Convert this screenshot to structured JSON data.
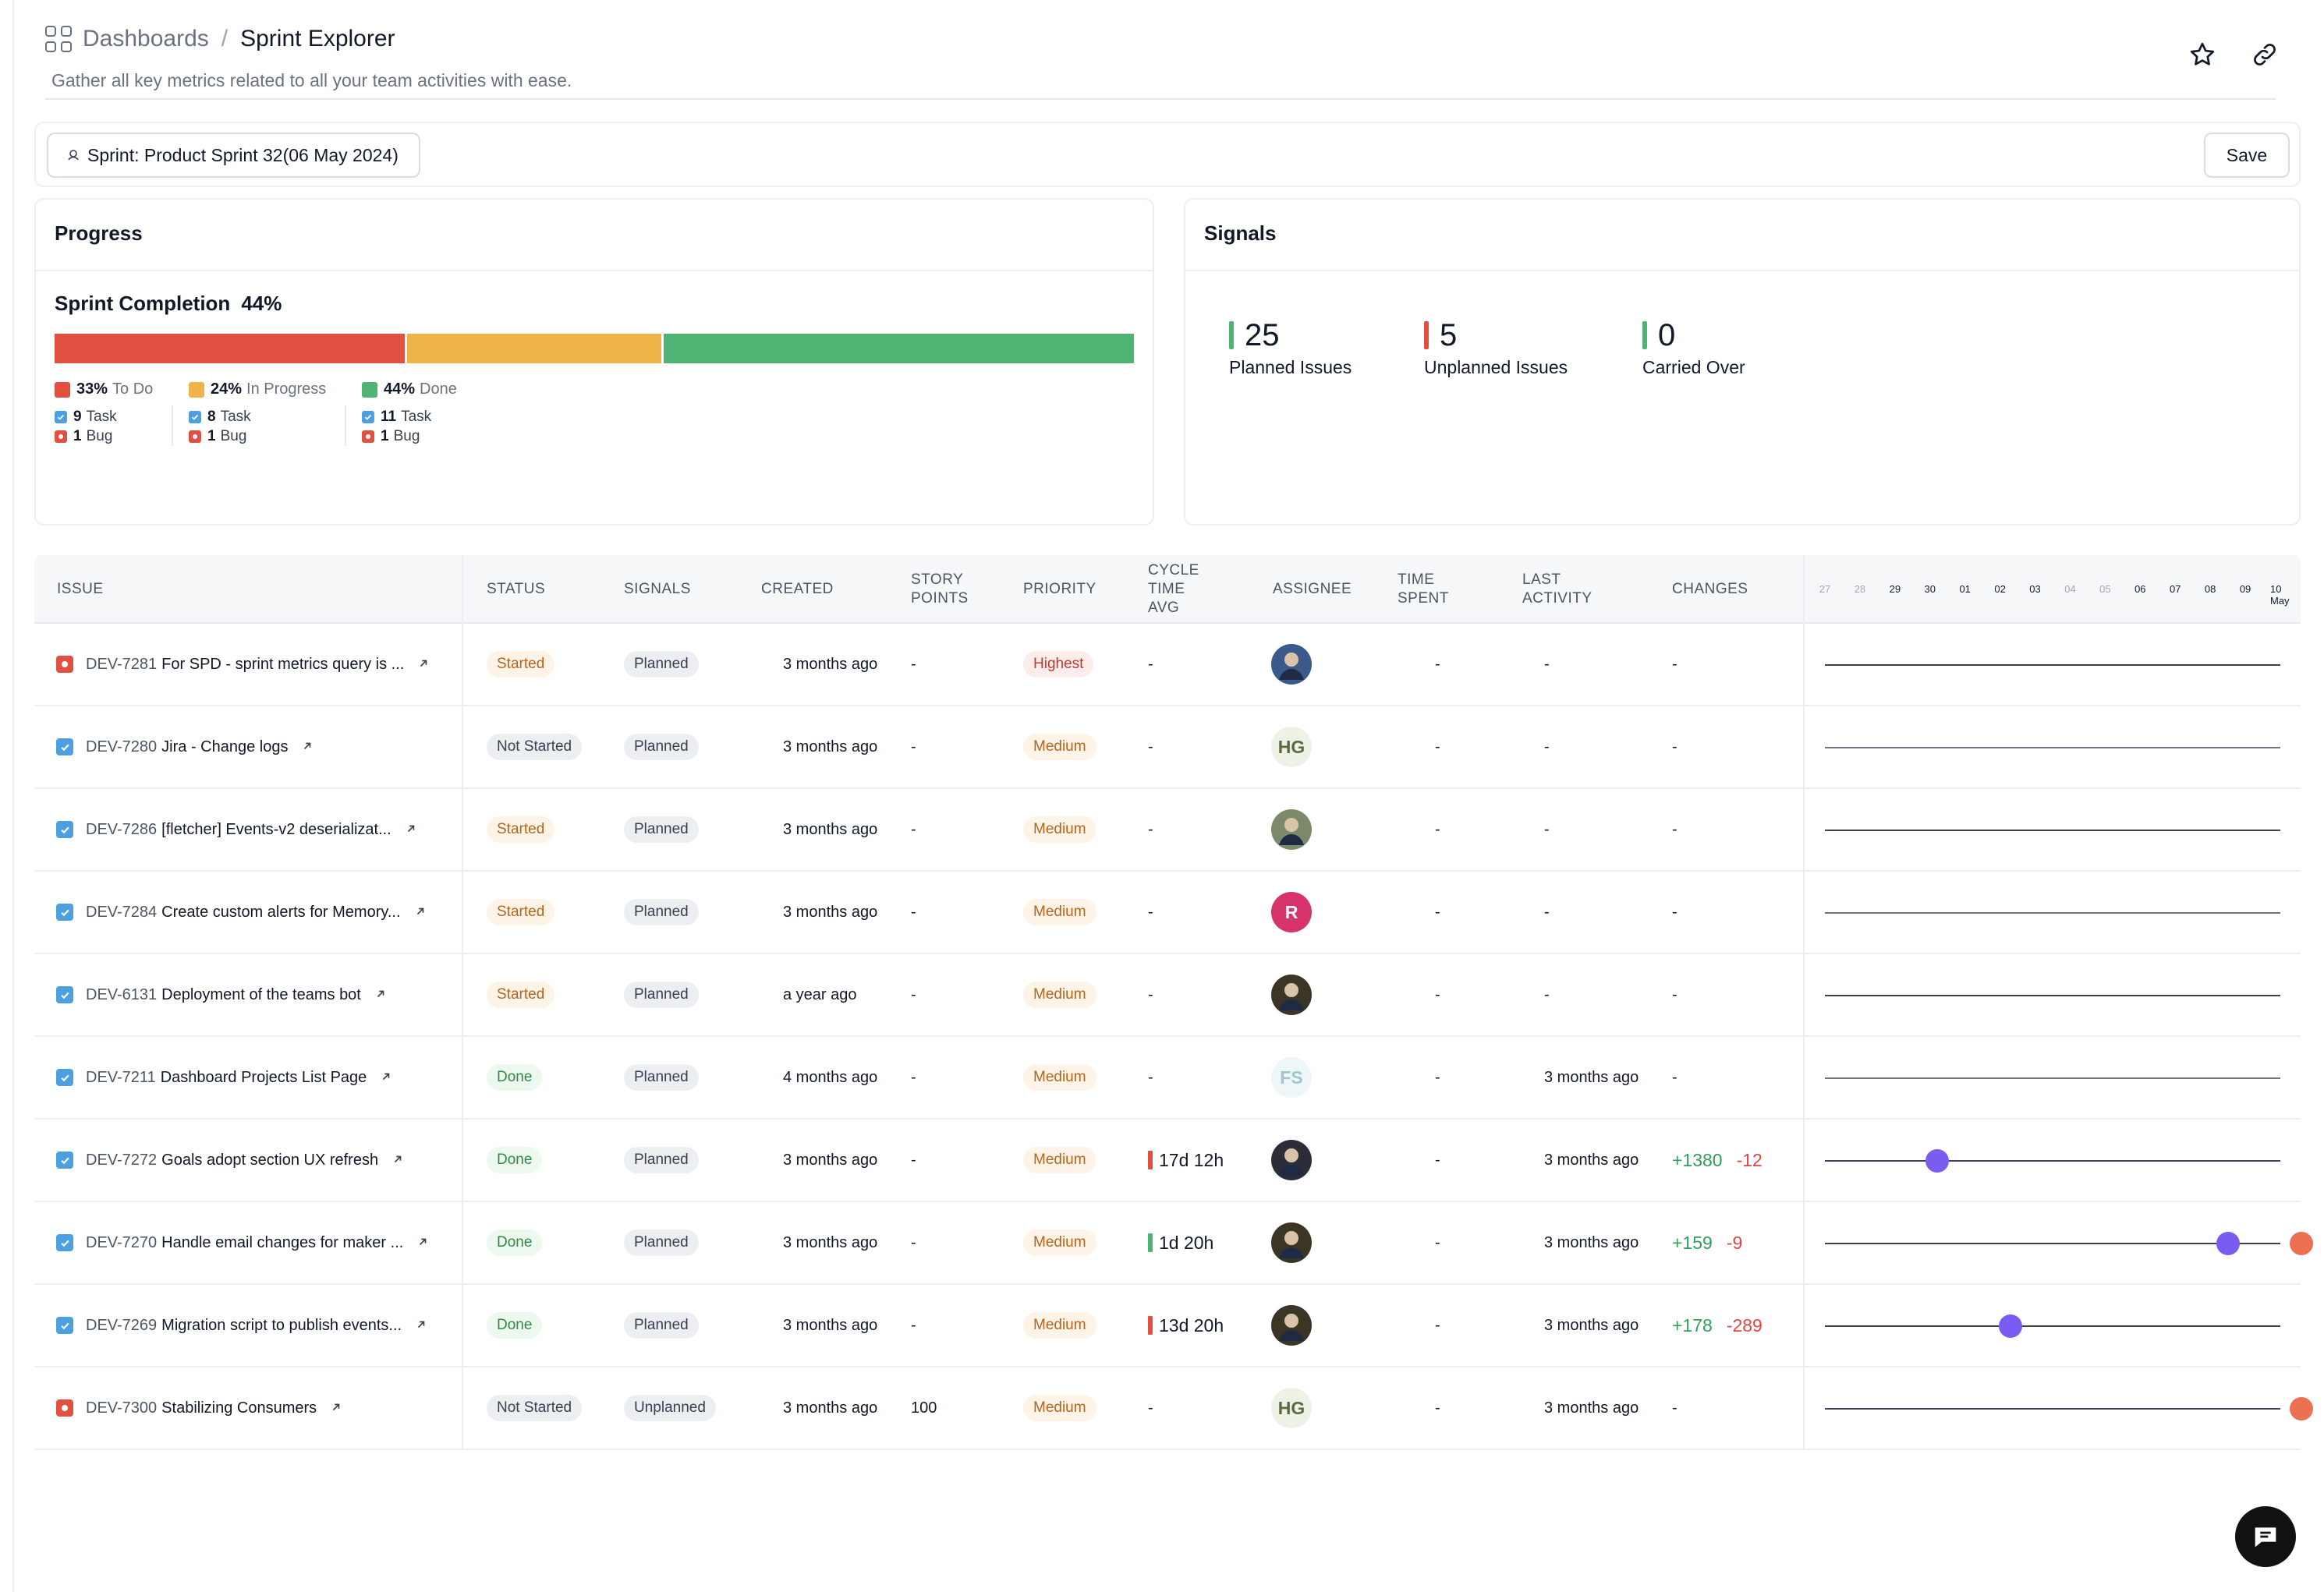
{
  "breadcrumb": {
    "root": "Dashboards",
    "separator": "/",
    "current": "Sprint Explorer"
  },
  "subtitle": "Gather all key metrics related to all your team activities with ease.",
  "filter": {
    "label": "Sprint: Product Sprint 32(06 May 2024)"
  },
  "save_label": "Save",
  "progress": {
    "title": "Progress",
    "completion_label": "Sprint Completion",
    "completion_value": "44%",
    "segments": [
      {
        "pct": 33,
        "pct_label": "33%",
        "name": "To Do",
        "color": "#e05141",
        "tasks": "9",
        "bugs": "1"
      },
      {
        "pct": 24,
        "pct_label": "24%",
        "name": "In Progress",
        "color": "#f0b34a",
        "tasks": "8",
        "bugs": "1"
      },
      {
        "pct": 44,
        "pct_label": "44%",
        "name": "Done",
        "color": "#4fb374",
        "tasks": "11",
        "bugs": "1"
      }
    ],
    "task_word": "Task",
    "bug_word": "Bug"
  },
  "signals": {
    "title": "Signals",
    "items": [
      {
        "value": "25",
        "label": "Planned Issues",
        "color": "#4fb374"
      },
      {
        "value": "5",
        "label": "Unplanned Issues",
        "color": "#e05141"
      },
      {
        "value": "0",
        "label": "Carried Over",
        "color": "#4fb374"
      }
    ]
  },
  "table": {
    "columns": {
      "issue": "ISSUE",
      "status": "STATUS",
      "signals": "SIGNALS",
      "created": "CREATED",
      "story_points": "STORY POINTS",
      "priority": "PRIORITY",
      "cycle_time": "CYCLE TIME AVG",
      "assignee": "ASSIGNEE",
      "time_spent": "TIME SPENT",
      "last_activity": "LAST ACTIVITY",
      "changes": "CHANGES"
    },
    "timeline_days": [
      {
        "label": "27",
        "muted": true
      },
      {
        "label": "28",
        "muted": true
      },
      {
        "label": "29",
        "muted": false
      },
      {
        "label": "30",
        "muted": false
      },
      {
        "label": "01",
        "muted": false
      },
      {
        "label": "02",
        "muted": false
      },
      {
        "label": "03",
        "muted": false
      },
      {
        "label": "04",
        "muted": true
      },
      {
        "label": "05",
        "muted": true
      },
      {
        "label": "06",
        "muted": false
      },
      {
        "label": "07",
        "muted": false
      },
      {
        "label": "08",
        "muted": false
      },
      {
        "label": "09",
        "muted": false
      },
      {
        "label": "10 May",
        "muted": false
      }
    ],
    "rows": [
      {
        "type": "bug",
        "key": "DEV-7281",
        "title": "For SPD - sprint metrics query is ...",
        "status": "Started",
        "signal": "Planned",
        "created": "3 months ago",
        "story_points": "-",
        "priority": "Highest",
        "cycle_time": "-",
        "cycle_color": "",
        "assignee": {
          "kind": "photo",
          "initials": "",
          "color": "#3a5a8c"
        },
        "time_spent": "-",
        "last_activity": "-",
        "changes_pos": "",
        "changes_neg": "",
        "changes_none": "-",
        "events": []
      },
      {
        "type": "task",
        "key": "DEV-7280",
        "title": "Jira - Change logs",
        "status": "Not Started",
        "signal": "Planned",
        "created": "3 months ago",
        "story_points": "-",
        "priority": "Medium",
        "cycle_time": "-",
        "cycle_color": "",
        "assignee": {
          "kind": "initials",
          "initials": "HG",
          "color": "#eef1e6",
          "text": "#5b6b3a"
        },
        "time_spent": "-",
        "last_activity": "-",
        "changes_pos": "",
        "changes_neg": "",
        "changes_none": "-",
        "events": []
      },
      {
        "type": "task",
        "key": "DEV-7286",
        "title": "[fletcher] Events-v2 deserializat...",
        "status": "Started",
        "signal": "Planned",
        "created": "3 months ago",
        "story_points": "-",
        "priority": "Medium",
        "cycle_time": "-",
        "cycle_color": "",
        "assignee": {
          "kind": "photo",
          "initials": "",
          "color": "#7a8a6a"
        },
        "time_spent": "-",
        "last_activity": "-",
        "changes_pos": "",
        "changes_neg": "",
        "changes_none": "-",
        "events": []
      },
      {
        "type": "task",
        "key": "DEV-7284",
        "title": "Create custom alerts for Memory...",
        "status": "Started",
        "signal": "Planned",
        "created": "3 months ago",
        "story_points": "-",
        "priority": "Medium",
        "cycle_time": "-",
        "cycle_color": "",
        "assignee": {
          "kind": "initials",
          "initials": "R",
          "color": "#d6336c",
          "text": "#ffffff"
        },
        "time_spent": "-",
        "last_activity": "-",
        "changes_pos": "",
        "changes_neg": "",
        "changes_none": "-",
        "events": []
      },
      {
        "type": "task",
        "key": "DEV-6131",
        "title": "Deployment of the teams bot",
        "status": "Started",
        "signal": "Planned",
        "created": "a year ago",
        "story_points": "-",
        "priority": "Medium",
        "cycle_time": "-",
        "cycle_color": "",
        "assignee": {
          "kind": "photo",
          "initials": "",
          "color": "#3b3526"
        },
        "time_spent": "-",
        "last_activity": "-",
        "changes_pos": "",
        "changes_neg": "",
        "changes_none": "-",
        "events": []
      },
      {
        "type": "task",
        "key": "DEV-7211",
        "title": "Dashboard Projects List Page",
        "status": "Done",
        "signal": "Planned",
        "created": "4 months ago",
        "story_points": "-",
        "priority": "Medium",
        "cycle_time": "-",
        "cycle_color": "",
        "assignee": {
          "kind": "initials",
          "initials": "FS",
          "color": "#eef6f8",
          "text": "#9cc7d3"
        },
        "time_spent": "-",
        "last_activity": "3 months ago",
        "changes_pos": "",
        "changes_neg": "",
        "changes_none": "-",
        "events": []
      },
      {
        "type": "task",
        "key": "DEV-7272",
        "title": "Goals adopt section UX refresh",
        "status": "Done",
        "signal": "Planned",
        "created": "3 months ago",
        "story_points": "-",
        "priority": "Medium",
        "cycle_time": "17d 12h",
        "cycle_color": "#e05141",
        "assignee": {
          "kind": "photo",
          "initials": "",
          "color": "#2d2d3a"
        },
        "time_spent": "-",
        "last_activity": "3 months ago",
        "changes_pos": "+1380",
        "changes_neg": "-12",
        "changes_none": "",
        "events": [
          {
            "day": 3.2,
            "color": "#7b5cf0"
          }
        ]
      },
      {
        "type": "task",
        "key": "DEV-7270",
        "title": "Handle email changes for maker ...",
        "status": "Done",
        "signal": "Planned",
        "created": "3 months ago",
        "story_points": "-",
        "priority": "Medium",
        "cycle_time": "1d 20h",
        "cycle_color": "#4fb374",
        "assignee": {
          "kind": "photo",
          "initials": "",
          "color": "#3b3526"
        },
        "time_spent": "-",
        "last_activity": "3 months ago",
        "changes_pos": "+159",
        "changes_neg": "-9",
        "changes_none": "",
        "events": [
          {
            "day": 11.5,
            "color": "#7b5cf0"
          },
          {
            "day": 13.6,
            "color": "#ec7153"
          }
        ]
      },
      {
        "type": "task",
        "key": "DEV-7269",
        "title": "Migration script to publish events...",
        "status": "Done",
        "signal": "Planned",
        "created": "3 months ago",
        "story_points": "-",
        "priority": "Medium",
        "cycle_time": "13d 20h",
        "cycle_color": "#e05141",
        "assignee": {
          "kind": "photo",
          "initials": "",
          "color": "#3b3526"
        },
        "time_spent": "-",
        "last_activity": "3 months ago",
        "changes_pos": "+178",
        "changes_neg": "-289",
        "changes_none": "",
        "events": [
          {
            "day": 5.3,
            "color": "#7b5cf0"
          }
        ]
      },
      {
        "type": "bug",
        "key": "DEV-7300",
        "title": "Stabilizing Consumers",
        "status": "Not Started",
        "signal": "Unplanned",
        "created": "3 months ago",
        "story_points": "100",
        "priority": "Medium",
        "cycle_time": "-",
        "cycle_color": "",
        "assignee": {
          "kind": "initials",
          "initials": "HG",
          "color": "#eef1e6",
          "text": "#5b6b3a"
        },
        "time_spent": "-",
        "last_activity": "3 months ago",
        "changes_pos": "",
        "changes_neg": "",
        "changes_none": "-",
        "events": [
          {
            "day": 13.6,
            "color": "#ec7153"
          }
        ]
      }
    ]
  }
}
